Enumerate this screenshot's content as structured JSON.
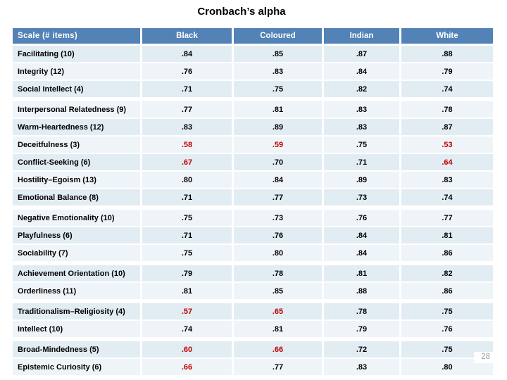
{
  "slide": {
    "title": "Cronbach’s alpha",
    "page_number": "28"
  },
  "colors": {
    "header_bg": "#5282B6",
    "header_text": "#FFFFFF",
    "row_odd_bg": "#E2ECF3",
    "row_even_bg": "#EFF4F8",
    "value_text": "#000000",
    "low_value_text": "#C00000",
    "page_number_text": "#A0A0A0"
  },
  "table": {
    "columns": [
      "Scale (# items)",
      "Black",
      "Coloured",
      "Indian",
      "White"
    ],
    "groups": [
      {
        "rows": [
          {
            "label": "Facilitating (10)",
            "values": [
              ".84",
              ".85",
              ".87",
              ".88"
            ],
            "red": [
              false,
              false,
              false,
              false
            ]
          },
          {
            "label": "Integrity (12)",
            "values": [
              ".76",
              ".83",
              ".84",
              ".79"
            ],
            "red": [
              false,
              false,
              false,
              false
            ]
          },
          {
            "label": "Social Intellect (4)",
            "values": [
              ".71",
              ".75",
              ".82",
              ".74"
            ],
            "red": [
              false,
              false,
              false,
              false
            ]
          }
        ]
      },
      {
        "rows": [
          {
            "label": "Interpersonal Relatedness (9)",
            "values": [
              ".77",
              ".81",
              ".83",
              ".78"
            ],
            "red": [
              false,
              false,
              false,
              false
            ]
          },
          {
            "label": "Warm-Heartedness (12)",
            "values": [
              ".83",
              ".89",
              ".83",
              ".87"
            ],
            "red": [
              false,
              false,
              false,
              false
            ]
          },
          {
            "label": "Deceitfulness (3)",
            "values": [
              ".58",
              ".59",
              ".75",
              ".53"
            ],
            "red": [
              true,
              true,
              false,
              true
            ]
          },
          {
            "label": "Conflict-Seeking (6)",
            "values": [
              ".67",
              ".70",
              ".71",
              ".64"
            ],
            "red": [
              true,
              false,
              false,
              true
            ]
          },
          {
            "label": "Hostility–Egoism (13)",
            "values": [
              ".80",
              ".84",
              ".89",
              ".83"
            ],
            "red": [
              false,
              false,
              false,
              false
            ]
          },
          {
            "label": "Emotional Balance (8)",
            "values": [
              ".71",
              ".77",
              ".73",
              ".74"
            ],
            "red": [
              false,
              false,
              false,
              false
            ]
          }
        ]
      },
      {
        "rows": [
          {
            "label": "Negative Emotionality (10)",
            "values": [
              ".75",
              ".73",
              ".76",
              ".77"
            ],
            "red": [
              false,
              false,
              false,
              false
            ]
          },
          {
            "label": "Playfulness (6)",
            "values": [
              ".71",
              ".76",
              ".84",
              ".81"
            ],
            "red": [
              false,
              false,
              false,
              false
            ]
          },
          {
            "label": "Sociability (7)",
            "values": [
              ".75",
              ".80",
              ".84",
              ".86"
            ],
            "red": [
              false,
              false,
              false,
              false
            ]
          }
        ]
      },
      {
        "rows": [
          {
            "label": "Achievement Orientation (10)",
            "values": [
              ".79",
              ".78",
              ".81",
              ".82"
            ],
            "red": [
              false,
              false,
              false,
              false
            ]
          },
          {
            "label": "Orderliness (11)",
            "values": [
              ".81",
              ".85",
              ".88",
              ".86"
            ],
            "red": [
              false,
              false,
              false,
              false
            ]
          }
        ]
      },
      {
        "rows": [
          {
            "label": "Traditionalism–Religiosity (4)",
            "values": [
              ".57",
              ".65",
              ".78",
              ".75"
            ],
            "red": [
              true,
              true,
              false,
              false
            ]
          },
          {
            "label": "Intellect (10)",
            "values": [
              ".74",
              ".81",
              ".79",
              ".76"
            ],
            "red": [
              false,
              false,
              false,
              false
            ]
          }
        ]
      },
      {
        "rows": [
          {
            "label": "Broad-Mindedness (5)",
            "values": [
              ".60",
              ".66",
              ".72",
              ".75"
            ],
            "red": [
              true,
              true,
              false,
              false
            ]
          },
          {
            "label": "Epistemic Curiosity (6)",
            "values": [
              ".66",
              ".77",
              ".83",
              ".80"
            ],
            "red": [
              true,
              false,
              false,
              false
            ]
          }
        ]
      }
    ]
  },
  "chart_data": {
    "type": "table",
    "title": "Cronbach’s alpha",
    "columns": [
      "Scale (# items)",
      "Black",
      "Coloured",
      "Indian",
      "White"
    ],
    "rows": [
      [
        "Facilitating (10)",
        0.84,
        0.85,
        0.87,
        0.88
      ],
      [
        "Integrity (12)",
        0.76,
        0.83,
        0.84,
        0.79
      ],
      [
        "Social Intellect (4)",
        0.71,
        0.75,
        0.82,
        0.74
      ],
      [
        "Interpersonal Relatedness (9)",
        0.77,
        0.81,
        0.83,
        0.78
      ],
      [
        "Warm-Heartedness (12)",
        0.83,
        0.89,
        0.83,
        0.87
      ],
      [
        "Deceitfulness (3)",
        0.58,
        0.59,
        0.75,
        0.53
      ],
      [
        "Conflict-Seeking (6)",
        0.67,
        0.7,
        0.71,
        0.64
      ],
      [
        "Hostility–Egoism (13)",
        0.8,
        0.84,
        0.89,
        0.83
      ],
      [
        "Emotional Balance (8)",
        0.71,
        0.77,
        0.73,
        0.74
      ],
      [
        "Negative Emotionality (10)",
        0.75,
        0.73,
        0.76,
        0.77
      ],
      [
        "Playfulness (6)",
        0.71,
        0.76,
        0.84,
        0.81
      ],
      [
        "Sociability (7)",
        0.75,
        0.8,
        0.84,
        0.86
      ],
      [
        "Achievement Orientation (10)",
        0.79,
        0.78,
        0.81,
        0.82
      ],
      [
        "Orderliness (11)",
        0.81,
        0.85,
        0.88,
        0.86
      ],
      [
        "Traditionalism–Religiosity (4)",
        0.57,
        0.65,
        0.78,
        0.75
      ],
      [
        "Intellect (10)",
        0.74,
        0.81,
        0.79,
        0.76
      ],
      [
        "Broad-Mindedness (5)",
        0.6,
        0.66,
        0.72,
        0.75
      ],
      [
        "Epistemic Curiosity (6)",
        0.66,
        0.77,
        0.83,
        0.8
      ]
    ],
    "low_value_highlight_color": "#C00000"
  }
}
